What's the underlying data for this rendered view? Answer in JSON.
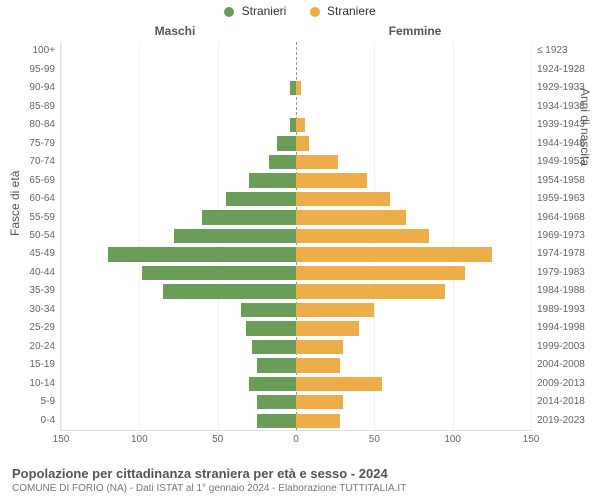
{
  "legend": {
    "male": {
      "label": "Stranieri",
      "color": "#6a9e58"
    },
    "female": {
      "label": "Straniere",
      "color": "#edae49"
    }
  },
  "group_titles": {
    "left": "Maschi",
    "right": "Femmine"
  },
  "axis_titles": {
    "left": "Fasce di età",
    "right": "Anni di nascita"
  },
  "footer": {
    "title": "Popolazione per cittadinanza straniera per età e sesso - 2024",
    "subtitle": "COMUNE DI FORIO (NA) - Dati ISTAT al 1° gennaio 2024 - Elaborazione TUTTITALIA.IT"
  },
  "chart": {
    "type": "population-pyramid",
    "x_max": 150,
    "x_ticks": [
      150,
      100,
      50,
      0,
      50,
      100,
      150
    ],
    "background_color": "#ffffff",
    "grid_color": "#f0f0f0",
    "center_line_color": "#999999",
    "text_color": "#666666",
    "bar_gap_ratio": 0.22,
    "label_fontsize": 10,
    "title_fontsize": 13,
    "legend_fontsize": 12,
    "rows": [
      {
        "age": "100+",
        "birth": "≤ 1923",
        "m": 0,
        "f": 0
      },
      {
        "age": "95-99",
        "birth": "1924-1928",
        "m": 0,
        "f": 0
      },
      {
        "age": "90-94",
        "birth": "1929-1933",
        "m": 4,
        "f": 3
      },
      {
        "age": "85-89",
        "birth": "1934-1938",
        "m": 0,
        "f": 0
      },
      {
        "age": "80-84",
        "birth": "1939-1943",
        "m": 4,
        "f": 6
      },
      {
        "age": "75-79",
        "birth": "1944-1948",
        "m": 12,
        "f": 8
      },
      {
        "age": "70-74",
        "birth": "1949-1953",
        "m": 17,
        "f": 27
      },
      {
        "age": "65-69",
        "birth": "1954-1958",
        "m": 30,
        "f": 45
      },
      {
        "age": "60-64",
        "birth": "1959-1963",
        "m": 45,
        "f": 60
      },
      {
        "age": "55-59",
        "birth": "1964-1968",
        "m": 60,
        "f": 70
      },
      {
        "age": "50-54",
        "birth": "1969-1973",
        "m": 78,
        "f": 85
      },
      {
        "age": "45-49",
        "birth": "1974-1978",
        "m": 120,
        "f": 125
      },
      {
        "age": "40-44",
        "birth": "1979-1983",
        "m": 98,
        "f": 108
      },
      {
        "age": "35-39",
        "birth": "1984-1988",
        "m": 85,
        "f": 95
      },
      {
        "age": "30-34",
        "birth": "1989-1993",
        "m": 35,
        "f": 50
      },
      {
        "age": "25-29",
        "birth": "1994-1998",
        "m": 32,
        "f": 40
      },
      {
        "age": "20-24",
        "birth": "1999-2003",
        "m": 28,
        "f": 30
      },
      {
        "age": "15-19",
        "birth": "2004-2008",
        "m": 25,
        "f": 28
      },
      {
        "age": "10-14",
        "birth": "2009-2013",
        "m": 30,
        "f": 55
      },
      {
        "age": "5-9",
        "birth": "2014-2018",
        "m": 25,
        "f": 30
      },
      {
        "age": "0-4",
        "birth": "2019-2023",
        "m": 25,
        "f": 28
      }
    ]
  }
}
